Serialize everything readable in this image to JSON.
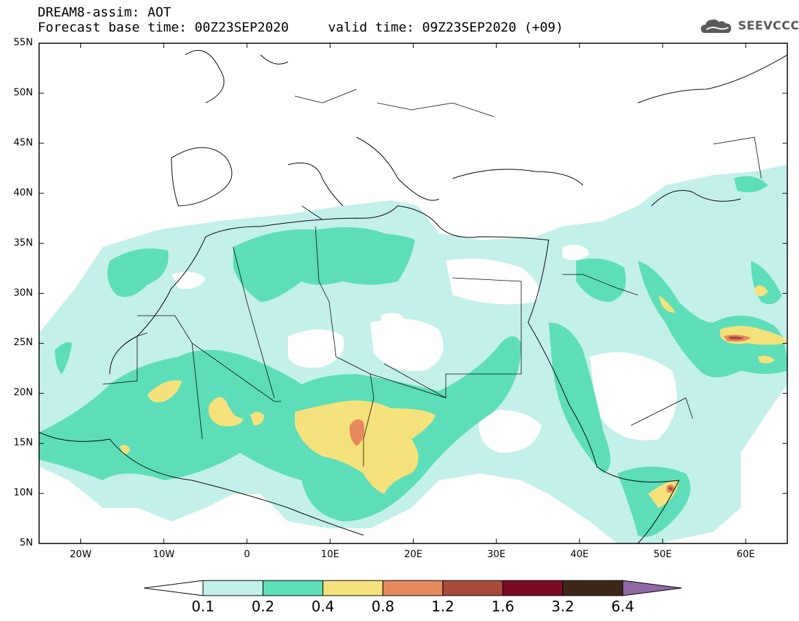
{
  "title": {
    "line1": "DREAM8-assim: AOT",
    "line2": "Forecast base time: 00Z23SEP2020     valid time: 09Z23SEP2020 (+09)"
  },
  "logo": {
    "text": "SEEVCCC",
    "icon": "cloud-icon"
  },
  "map": {
    "lat_range": [
      5,
      55
    ],
    "lon_range": [
      -25,
      65
    ],
    "lat_ticks": [
      {
        "value": 55,
        "label": "55N"
      },
      {
        "value": 50,
        "label": "50N"
      },
      {
        "value": 45,
        "label": "45N"
      },
      {
        "value": 40,
        "label": "40N"
      },
      {
        "value": 35,
        "label": "35N"
      },
      {
        "value": 30,
        "label": "30N"
      },
      {
        "value": 25,
        "label": "25N"
      },
      {
        "value": 20,
        "label": "20N"
      },
      {
        "value": 15,
        "label": "15N"
      },
      {
        "value": 10,
        "label": "10N"
      },
      {
        "value": 5,
        "label": "5N"
      }
    ],
    "lon_ticks": [
      {
        "value": -20,
        "label": "20W"
      },
      {
        "value": -10,
        "label": "10W"
      },
      {
        "value": 0,
        "label": "0"
      },
      {
        "value": 10,
        "label": "10E"
      },
      {
        "value": 20,
        "label": "20E"
      },
      {
        "value": 30,
        "label": "30E"
      },
      {
        "value": 40,
        "label": "40E"
      },
      {
        "value": 50,
        "label": "50E"
      },
      {
        "value": 60,
        "label": "60E"
      }
    ]
  },
  "colorbar": {
    "labels": [
      "0.1",
      "0.2",
      "0.4",
      "0.8",
      "1.2",
      "1.6",
      "3.2",
      "6.4"
    ],
    "colors": [
      "#ffffff",
      "#c4f0ea",
      "#5ddeb9",
      "#f6e27c",
      "#e68a5e",
      "#a84b3c",
      "#7b0a25",
      "#3e2718",
      "#8e6aa4"
    ]
  }
}
